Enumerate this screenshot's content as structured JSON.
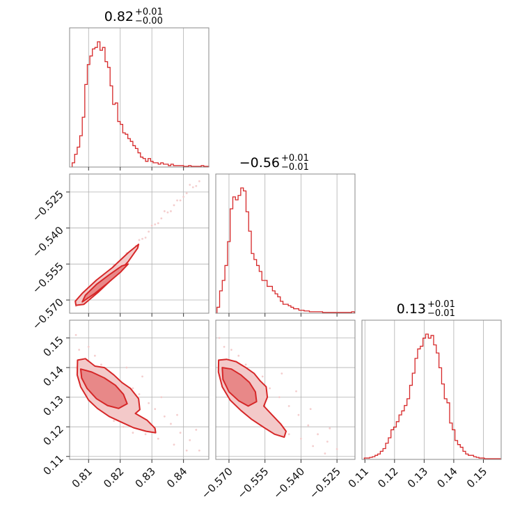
{
  "colors": {
    "accent": "#d62728",
    "fill_light": "#f3c9c9",
    "fill_mid": "#e88888",
    "frame": "#888888",
    "grid": "#b0b0b0"
  },
  "chart_data": {
    "type": "corner",
    "params": [
      {
        "title_value": "0.82",
        "title_plus": "+0.01",
        "title_minus": "−0.00",
        "range": [
          0.804,
          0.848
        ],
        "ticks": [
          0.81,
          0.82,
          0.83,
          0.84
        ],
        "tick_labels": [
          "0.81",
          "0.82",
          "0.83",
          "0.84"
        ]
      },
      {
        "title_value": "−0.56",
        "title_plus": "+0.01",
        "title_minus": "−0.01",
        "range": [
          -0.5755,
          -0.5175
        ],
        "ticks": [
          -0.57,
          -0.555,
          -0.54,
          -0.525
        ],
        "tick_labels": [
          "−0.570",
          "−0.555",
          "−0.540",
          "−0.525"
        ]
      },
      {
        "title_value": "0.13",
        "title_plus": "+0.01",
        "title_minus": "−0.01",
        "range": [
          0.109,
          0.156
        ],
        "ticks": [
          0.11,
          0.12,
          0.13,
          0.14,
          0.15
        ],
        "tick_labels": [
          "0.11",
          "0.12",
          "0.13",
          "0.14",
          "0.15"
        ]
      }
    ],
    "histograms": [
      {
        "param": 0,
        "bin_edges": [
          0.8048,
          0.8056,
          0.8064,
          0.8072,
          0.808,
          0.8088,
          0.8096,
          0.8104,
          0.8112,
          0.812,
          0.8128,
          0.8136,
          0.8144,
          0.8152,
          0.816,
          0.8168,
          0.8176,
          0.8184,
          0.8192,
          0.82,
          0.8208,
          0.8216,
          0.8224,
          0.8232,
          0.824,
          0.8248,
          0.8256,
          0.8264,
          0.8272,
          0.828,
          0.8288,
          0.8296,
          0.8304,
          0.8312,
          0.832,
          0.8328,
          0.8336,
          0.8344,
          0.8352,
          0.836,
          0.8368,
          0.8376,
          0.8384,
          0.8392,
          0.84,
          0.8408,
          0.8416,
          0.8424,
          0.8432,
          0.844,
          0.8448,
          0.8456,
          0.8464,
          0.8472,
          0.848
        ],
        "counts": [
          3,
          9,
          14,
          22,
          35,
          58,
          72,
          78,
          83,
          84,
          88,
          82,
          84,
          74,
          70,
          57,
          44,
          45,
          32,
          30,
          24,
          23,
          20,
          18,
          15,
          13,
          10,
          7,
          6,
          4,
          6,
          4,
          3,
          3,
          2,
          3,
          2,
          2,
          1,
          2,
          1,
          1,
          1,
          1,
          0.5,
          0.5,
          1,
          0.5,
          0.5,
          0.5,
          0.5,
          1,
          0.5,
          0.5
        ]
      },
      {
        "param": 1,
        "bin_edges": [
          -0.575,
          -0.5739,
          -0.5728,
          -0.5717,
          -0.5706,
          -0.5695,
          -0.5684,
          -0.5673,
          -0.5662,
          -0.5651,
          -0.564,
          -0.5629,
          -0.5618,
          -0.5607,
          -0.5596,
          -0.5585,
          -0.5574,
          -0.5563,
          -0.5552,
          -0.5541,
          -0.553,
          -0.5519,
          -0.5508,
          -0.5497,
          -0.5486,
          -0.5475,
          -0.5464,
          -0.5453,
          -0.5442,
          -0.5431,
          -0.542,
          -0.5409,
          -0.5398,
          -0.5387,
          -0.5376,
          -0.5365,
          -0.5354,
          -0.5343,
          -0.5332,
          -0.5321,
          -0.531,
          -0.5299,
          -0.5288,
          -0.5277,
          -0.5266,
          -0.5255,
          -0.5244,
          -0.5233,
          -0.5222,
          -0.5211,
          -0.52,
          -0.5189,
          -0.5178
        ],
        "counts": [
          4,
          15,
          22,
          32,
          48,
          70,
          78,
          76,
          79,
          84,
          82,
          68,
          55,
          40,
          36,
          32,
          28,
          22,
          22,
          18,
          18,
          15,
          13,
          11,
          8,
          6,
          6,
          5,
          4,
          3,
          3,
          2,
          2,
          1.5,
          1.5,
          1,
          1,
          1,
          1,
          1,
          0.5,
          0.5,
          0.5,
          0.5,
          0.5,
          0.5,
          0.5,
          0.5,
          0.5,
          0.5,
          0.5,
          1
        ]
      },
      {
        "param": 2,
        "bin_edges": [
          0.1098,
          0.1107,
          0.1116,
          0.1125,
          0.1134,
          0.1143,
          0.1152,
          0.1161,
          0.117,
          0.1179,
          0.1188,
          0.1197,
          0.1206,
          0.1215,
          0.1224,
          0.1233,
          0.1242,
          0.1251,
          0.126,
          0.1269,
          0.1278,
          0.1287,
          0.1296,
          0.1305,
          0.1314,
          0.1323,
          0.1332,
          0.1341,
          0.135,
          0.1359,
          0.1368,
          0.1377,
          0.1386,
          0.1395,
          0.1404,
          0.1413,
          0.1422,
          0.1431,
          0.144,
          0.1449,
          0.1458,
          0.1467,
          0.1476,
          0.1485,
          0.1494,
          0.1503,
          0.1512,
          0.1521,
          0.153,
          0.1539,
          0.1548,
          0.1557
        ],
        "counts": [
          1,
          1,
          1.5,
          2,
          3,
          4,
          6,
          8,
          12,
          16,
          22,
          24,
          28,
          33,
          36,
          40,
          45,
          55,
          64,
          75,
          82,
          84,
          90,
          93,
          90,
          92,
          85,
          79,
          68,
          56,
          45,
          42,
          27,
          22,
          14,
          11,
          9,
          6,
          4,
          3,
          3,
          2,
          1.5,
          1,
          1,
          0.5,
          0.5,
          0.5,
          0.5,
          0.5,
          0.5
        ]
      }
    ],
    "contours_2d": [
      {
        "x_param": 0,
        "y_param": 1,
        "scatter_cloud": [
          [
            0.806,
            -0.5725
          ],
          [
            0.8075,
            -0.5705
          ],
          [
            0.809,
            -0.569
          ],
          [
            0.811,
            -0.5665
          ],
          [
            0.813,
            -0.564
          ],
          [
            0.815,
            -0.5615
          ],
          [
            0.817,
            -0.559
          ],
          [
            0.819,
            -0.556
          ],
          [
            0.821,
            -0.553
          ],
          [
            0.823,
            -0.55
          ],
          [
            0.825,
            -0.5475
          ],
          [
            0.827,
            -0.5445
          ],
          [
            0.829,
            -0.5415
          ],
          [
            0.831,
            -0.5385
          ],
          [
            0.833,
            -0.536
          ],
          [
            0.835,
            -0.5335
          ],
          [
            0.837,
            -0.5305
          ],
          [
            0.839,
            -0.5285
          ],
          [
            0.841,
            -0.5255
          ],
          [
            0.843,
            -0.523
          ],
          [
            0.845,
            -0.5205
          ],
          [
            0.81,
            -0.566
          ],
          [
            0.812,
            -0.5655
          ],
          [
            0.814,
            -0.561
          ],
          [
            0.816,
            -0.56
          ],
          [
            0.818,
            -0.5555
          ],
          [
            0.82,
            -0.556
          ],
          [
            0.822,
            -0.5505
          ],
          [
            0.824,
            -0.549
          ],
          [
            0.826,
            -0.545
          ],
          [
            0.828,
            -0.544
          ],
          [
            0.83,
            -0.539
          ],
          [
            0.832,
            -0.538
          ],
          [
            0.834,
            -0.533
          ],
          [
            0.836,
            -0.533
          ],
          [
            0.838,
            -0.5285
          ],
          [
            0.84,
            -0.527
          ],
          [
            0.842,
            -0.522
          ],
          [
            0.844,
            -0.5225
          ]
        ],
        "outer": [
          [
            0.806,
            -0.5722
          ],
          [
            0.8085,
            -0.5718
          ],
          [
            0.813,
            -0.5668
          ],
          [
            0.8175,
            -0.5612
          ],
          [
            0.8225,
            -0.554
          ],
          [
            0.8255,
            -0.5484
          ],
          [
            0.8258,
            -0.5468
          ],
          [
            0.8225,
            -0.5503
          ],
          [
            0.8175,
            -0.5565
          ],
          [
            0.8125,
            -0.5617
          ],
          [
            0.808,
            -0.5672
          ],
          [
            0.8058,
            -0.5705
          ]
        ],
        "inner": [
          [
            0.808,
            -0.5708
          ],
          [
            0.812,
            -0.5672
          ],
          [
            0.816,
            -0.563
          ],
          [
            0.82,
            -0.5585
          ],
          [
            0.8225,
            -0.555
          ],
          [
            0.8205,
            -0.5558
          ],
          [
            0.8165,
            -0.5595
          ],
          [
            0.8125,
            -0.5635
          ],
          [
            0.809,
            -0.568
          ]
        ]
      },
      {
        "x_param": 0,
        "y_param": 2,
        "scatter_cloud": [
          [
            0.806,
            0.151
          ],
          [
            0.807,
            0.146
          ],
          [
            0.806,
            0.14
          ],
          [
            0.81,
            0.147
          ],
          [
            0.812,
            0.144
          ],
          [
            0.814,
            0.141
          ],
          [
            0.816,
            0.138
          ],
          [
            0.819,
            0.136
          ],
          [
            0.822,
            0.14
          ],
          [
            0.824,
            0.133
          ],
          [
            0.826,
            0.131
          ],
          [
            0.829,
            0.128
          ],
          [
            0.831,
            0.126
          ],
          [
            0.834,
            0.1235
          ],
          [
            0.836,
            0.121
          ],
          [
            0.839,
            0.118
          ],
          [
            0.842,
            0.1155
          ],
          [
            0.845,
            0.112
          ],
          [
            0.811,
            0.133
          ],
          [
            0.813,
            0.129
          ],
          [
            0.815,
            0.125
          ],
          [
            0.818,
            0.122
          ],
          [
            0.821,
            0.12
          ],
          [
            0.824,
            0.118
          ],
          [
            0.828,
            0.1175
          ],
          [
            0.832,
            0.116
          ],
          [
            0.837,
            0.114
          ],
          [
            0.841,
            0.112
          ],
          [
            0.827,
            0.137
          ],
          [
            0.833,
            0.13
          ],
          [
            0.838,
            0.124
          ],
          [
            0.844,
            0.119
          ]
        ],
        "outer": [
          [
            0.8065,
            0.1425
          ],
          [
            0.809,
            0.143
          ],
          [
            0.812,
            0.1405
          ],
          [
            0.815,
            0.14
          ],
          [
            0.818,
            0.1375
          ],
          [
            0.8205,
            0.135
          ],
          [
            0.8232,
            0.133
          ],
          [
            0.8258,
            0.1295
          ],
          [
            0.8262,
            0.1258
          ],
          [
            0.8248,
            0.1245
          ],
          [
            0.8285,
            0.1222
          ],
          [
            0.831,
            0.1195
          ],
          [
            0.8312,
            0.118
          ],
          [
            0.8282,
            0.1185
          ],
          [
            0.8242,
            0.1197
          ],
          [
            0.8205,
            0.1215
          ],
          [
            0.8165,
            0.1235
          ],
          [
            0.8128,
            0.1262
          ],
          [
            0.81,
            0.129
          ],
          [
            0.8075,
            0.1335
          ],
          [
            0.8064,
            0.1375
          ]
        ],
        "inner": [
          [
            0.8075,
            0.1395
          ],
          [
            0.811,
            0.1385
          ],
          [
            0.815,
            0.1365
          ],
          [
            0.8185,
            0.134
          ],
          [
            0.821,
            0.131
          ],
          [
            0.8222,
            0.1278
          ],
          [
            0.8195,
            0.1262
          ],
          [
            0.816,
            0.1272
          ],
          [
            0.8125,
            0.1295
          ],
          [
            0.8095,
            0.133
          ],
          [
            0.8078,
            0.1365
          ]
        ]
      },
      {
        "x_param": 1,
        "y_param": 2,
        "scatter_cloud": [
          [
            -0.574,
            0.15
          ],
          [
            -0.572,
            0.147
          ],
          [
            -0.573,
            0.142
          ],
          [
            -0.569,
            0.146
          ],
          [
            -0.566,
            0.144
          ],
          [
            -0.563,
            0.141
          ],
          [
            -0.56,
            0.138
          ],
          [
            -0.556,
            0.137
          ],
          [
            -0.553,
            0.133
          ],
          [
            -0.549,
            0.13
          ],
          [
            -0.545,
            0.127
          ],
          [
            -0.541,
            0.124
          ],
          [
            -0.537,
            0.1205
          ],
          [
            -0.533,
            0.1175
          ],
          [
            -0.529,
            0.115
          ],
          [
            -0.525,
            0.1125
          ],
          [
            -0.566,
            0.132
          ],
          [
            -0.562,
            0.128
          ],
          [
            -0.558,
            0.124
          ],
          [
            -0.554,
            0.1215
          ],
          [
            -0.55,
            0.1195
          ],
          [
            -0.545,
            0.1175
          ],
          [
            -0.54,
            0.116
          ],
          [
            -0.535,
            0.1135
          ],
          [
            -0.53,
            0.111
          ],
          [
            -0.548,
            0.138
          ],
          [
            -0.542,
            0.132
          ],
          [
            -0.536,
            0.126
          ],
          [
            -0.528,
            0.1195
          ]
        ],
        "outer": [
          [
            -0.5743,
            0.1425
          ],
          [
            -0.571,
            0.1428
          ],
          [
            -0.567,
            0.142
          ],
          [
            -0.563,
            0.14
          ],
          [
            -0.5595,
            0.138
          ],
          [
            -0.557,
            0.1355
          ],
          [
            -0.5545,
            0.1335
          ],
          [
            -0.554,
            0.13
          ],
          [
            -0.5555,
            0.127
          ],
          [
            -0.552,
            0.124
          ],
          [
            -0.5485,
            0.121
          ],
          [
            -0.5462,
            0.1185
          ],
          [
            -0.547,
            0.1165
          ],
          [
            -0.551,
            0.1175
          ],
          [
            -0.5555,
            0.1198
          ],
          [
            -0.5605,
            0.1225
          ],
          [
            -0.565,
            0.1255
          ],
          [
            -0.5695,
            0.129
          ],
          [
            -0.5728,
            0.1335
          ],
          [
            -0.5744,
            0.1385
          ]
        ],
        "inner": [
          [
            -0.5728,
            0.14
          ],
          [
            -0.569,
            0.1395
          ],
          [
            -0.565,
            0.1375
          ],
          [
            -0.5615,
            0.135
          ],
          [
            -0.559,
            0.1318
          ],
          [
            -0.5585,
            0.1285
          ],
          [
            -0.562,
            0.127
          ],
          [
            -0.566,
            0.1288
          ],
          [
            -0.57,
            0.1318
          ],
          [
            -0.5725,
            0.136
          ]
        ]
      }
    ],
    "grid": true
  }
}
